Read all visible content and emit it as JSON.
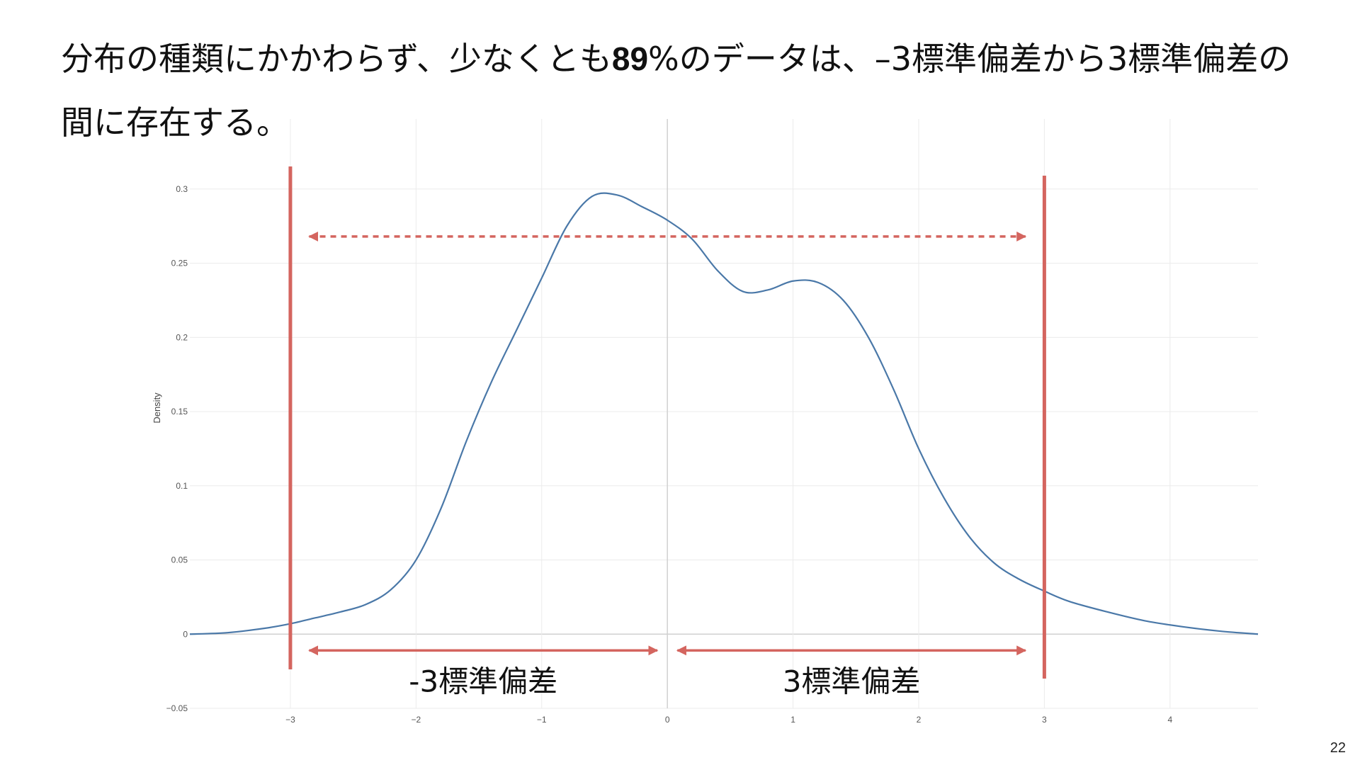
{
  "slide": {
    "title_before": "分布の種類にかかわらず、少なくとも",
    "title_bold": "89",
    "title_after": "%のデータは、–3標準偏差から3標準偏差の間に存在する。",
    "page_number": "22"
  },
  "colors": {
    "curve": "#4a78a8",
    "marker": "#d4655f",
    "grid": "#ebebeb",
    "zero_line": "#d0d0d0"
  },
  "chart_data": {
    "type": "line",
    "title": "",
    "xlabel": "",
    "ylabel": "Density",
    "xlim": [
      -3.8,
      4.7
    ],
    "ylim": [
      -0.05,
      0.32
    ],
    "x_ticks": [
      -3,
      -2,
      -1,
      0,
      1,
      2,
      3,
      4
    ],
    "x_tick_labels": [
      "−3",
      "−2",
      "−1",
      "0",
      "1",
      "2",
      "3",
      "4"
    ],
    "y_ticks": [
      -0.05,
      0,
      0.05,
      0.1,
      0.15,
      0.2,
      0.25,
      0.3
    ],
    "y_tick_labels": [
      "−0.05",
      "0",
      "0.05",
      "0.1",
      "0.15",
      "0.2",
      "0.25",
      "0.3"
    ],
    "grid": true,
    "legend": "none",
    "series": [
      {
        "x": [
          -3.8,
          -3.5,
          -3.2,
          -3.0,
          -2.8,
          -2.6,
          -2.4,
          -2.2,
          -2.0,
          -1.8,
          -1.6,
          -1.4,
          -1.2,
          -1.0,
          -0.8,
          -0.6,
          -0.4,
          -0.2,
          0.0,
          0.2,
          0.4,
          0.6,
          0.8,
          1.0,
          1.2,
          1.4,
          1.6,
          1.8,
          2.0,
          2.2,
          2.4,
          2.6,
          2.8,
          3.0,
          3.2,
          3.5,
          3.8,
          4.1,
          4.4,
          4.7
        ],
        "y": [
          0.0,
          0.001,
          0.004,
          0.007,
          0.011,
          0.015,
          0.02,
          0.03,
          0.05,
          0.085,
          0.13,
          0.17,
          0.205,
          0.24,
          0.275,
          0.295,
          0.296,
          0.288,
          0.279,
          0.266,
          0.245,
          0.231,
          0.232,
          0.238,
          0.237,
          0.225,
          0.2,
          0.165,
          0.125,
          0.092,
          0.066,
          0.048,
          0.037,
          0.029,
          0.022,
          0.015,
          0.009,
          0.005,
          0.002,
          0.0
        ]
      }
    ],
    "vertical_markers": [
      -3,
      3
    ],
    "annotations": [
      {
        "type": "dashed-double-arrow",
        "x_from": -2.85,
        "x_to": 2.85,
        "y": 0.268
      },
      {
        "type": "double-arrow",
        "x_from": -2.85,
        "x_to": -0.08,
        "y": -0.011,
        "label": "-3標準偏差"
      },
      {
        "type": "double-arrow",
        "x_from": 0.08,
        "x_to": 2.85,
        "y": -0.011,
        "label": "3標準偏差"
      }
    ]
  }
}
